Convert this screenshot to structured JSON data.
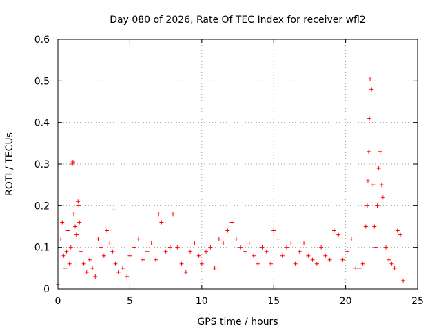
{
  "chart_data": {
    "type": "scatter",
    "title": "Day 080 of 2026, Rate Of TEC Index for receiver wfl2",
    "xlabel": "GPS time / hours",
    "ylabel": "ROTI / TECUs",
    "xlim": [
      0,
      25
    ],
    "ylim": [
      0,
      0.6
    ],
    "xticks": [
      0,
      5,
      10,
      15,
      20,
      25
    ],
    "xtick_labels": [
      "0",
      "5",
      "10",
      "15",
      "20",
      "25"
    ],
    "yticks": [
      0,
      0.1,
      0.2,
      0.3,
      0.4,
      0.5,
      0.6
    ],
    "ytick_labels": [
      "0",
      "0.1",
      "0.2",
      "0.3",
      "0.4",
      "0.5",
      "0.6"
    ],
    "grid": true,
    "marker": "+",
    "marker_color": "#ff0000",
    "series": [
      {
        "name": "ROTI",
        "x": [
          0.0,
          0.2,
          0.3,
          0.4,
          0.5,
          0.6,
          0.7,
          0.8,
          0.9,
          1.0,
          1.05,
          1.1,
          1.2,
          1.3,
          1.4,
          1.45,
          1.5,
          1.6,
          1.8,
          2.0,
          2.2,
          2.4,
          2.6,
          2.8,
          3.0,
          3.2,
          3.4,
          3.6,
          3.8,
          3.9,
          4.0,
          4.2,
          4.5,
          4.8,
          5.0,
          5.3,
          5.6,
          5.9,
          6.2,
          6.5,
          6.8,
          7.0,
          7.2,
          7.5,
          7.8,
          8.0,
          8.3,
          8.6,
          8.9,
          9.2,
          9.5,
          9.8,
          10.0,
          10.3,
          10.6,
          10.9,
          11.2,
          11.5,
          11.8,
          12.1,
          12.4,
          12.7,
          13.0,
          13.3,
          13.6,
          13.9,
          14.2,
          14.5,
          14.8,
          15.0,
          15.3,
          15.6,
          15.9,
          16.2,
          16.5,
          16.8,
          17.1,
          17.4,
          17.7,
          18.0,
          18.3,
          18.6,
          18.9,
          19.2,
          19.5,
          19.8,
          20.1,
          20.4,
          20.7,
          21.0,
          21.2,
          21.4,
          21.5,
          21.55,
          21.6,
          21.65,
          21.7,
          21.8,
          21.9,
          22.0,
          22.1,
          22.2,
          22.3,
          22.4,
          22.5,
          22.6,
          22.8,
          23.0,
          23.2,
          23.4,
          23.6,
          23.8,
          24.0
        ],
        "y": [
          0.01,
          0.12,
          0.16,
          0.08,
          0.05,
          0.09,
          0.14,
          0.06,
          0.1,
          0.3,
          0.305,
          0.18,
          0.15,
          0.13,
          0.21,
          0.2,
          0.16,
          0.09,
          0.06,
          0.04,
          0.07,
          0.05,
          0.03,
          0.12,
          0.1,
          0.08,
          0.14,
          0.11,
          0.09,
          0.19,
          0.06,
          0.04,
          0.05,
          0.03,
          0.08,
          0.1,
          0.12,
          0.07,
          0.09,
          0.11,
          0.07,
          0.18,
          0.16,
          0.09,
          0.1,
          0.18,
          0.1,
          0.06,
          0.04,
          0.09,
          0.11,
          0.08,
          0.06,
          0.09,
          0.1,
          0.05,
          0.12,
          0.11,
          0.14,
          0.16,
          0.12,
          0.1,
          0.09,
          0.11,
          0.08,
          0.06,
          0.1,
          0.09,
          0.06,
          0.14,
          0.12,
          0.08,
          0.1,
          0.11,
          0.06,
          0.09,
          0.11,
          0.08,
          0.07,
          0.06,
          0.1,
          0.08,
          0.07,
          0.14,
          0.13,
          0.07,
          0.09,
          0.12,
          0.05,
          0.05,
          0.06,
          0.15,
          0.2,
          0.26,
          0.33,
          0.41,
          0.505,
          0.48,
          0.25,
          0.15,
          0.1,
          0.2,
          0.29,
          0.33,
          0.25,
          0.22,
          0.1,
          0.07,
          0.06,
          0.05,
          0.14,
          0.13,
          0.02
        ]
      }
    ]
  }
}
